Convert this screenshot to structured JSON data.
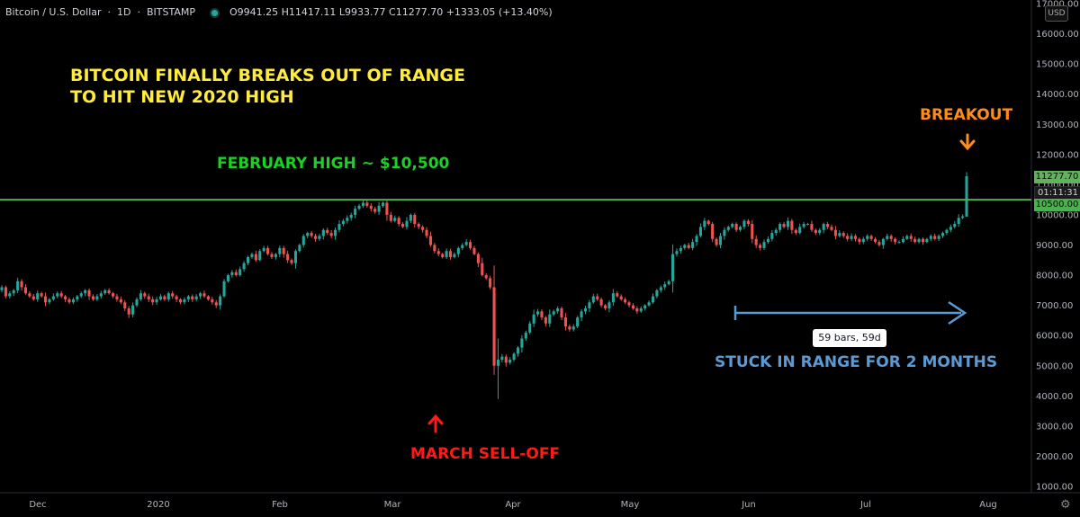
{
  "header": {
    "symbol": "Bitcoin / U.S. Dollar",
    "interval": "1D",
    "exchange": "BITSTAMP",
    "ohlc": "O9941.25  H11417.11  L9933.77  C11277.70  +1333.05 (+13.40%)",
    "currency": "USD"
  },
  "annotations": {
    "title_line1": "BITCOIN FINALLY BREAKS OUT OF RANGE",
    "title_line2": "TO HIT NEW 2020 HIGH",
    "february_high": "FEBRUARY HIGH ~ $10,500",
    "breakout": "BREAKOUT",
    "march": "MARCH SELL-OFF",
    "stuck": "STUCK IN RANGE FOR 2 MONTHS",
    "bars_measure": "59 bars, 59d"
  },
  "price_labels": {
    "last_price": "11277.70",
    "countdown": "01:11:31",
    "level": "10500.00"
  },
  "colors": {
    "up": "#26a69a",
    "down": "#ef5350",
    "level_line": "#4caf50",
    "title": "#ffeb3b",
    "feb": "#18d321",
    "breakout": "#ff8c1a",
    "march": "#ff1a1a",
    "range": "#5b9bd5"
  },
  "chart_data": {
    "type": "candlestick",
    "symbol": "BTCUSD",
    "interval": "1D",
    "ylim": [
      1000,
      17000
    ],
    "yticks": [
      17000,
      16000,
      15000,
      14000,
      13000,
      12000,
      11000,
      10000,
      9000,
      8000,
      7000,
      6000,
      5000,
      4000,
      3000,
      2000,
      1000
    ],
    "ytick_labels": [
      "17000.00",
      "16000.00",
      "15000.00",
      "14000.00",
      "13000.00",
      "12000.00",
      "11000.00",
      "10000.00",
      "9000.00",
      "8000.00",
      "7000.00",
      "6000.00",
      "5000.00",
      "4000.00",
      "3000.00",
      "2000.00",
      "1000.00"
    ],
    "xtick_labels": [
      "Dec",
      "2020",
      "Feb",
      "Mar",
      "Apr",
      "May",
      "Jun",
      "Jul",
      "Aug"
    ],
    "horizontal_level": 10500,
    "range_measure": {
      "bars": 59,
      "days": 59
    },
    "last_candle": {
      "open": 9941.25,
      "high": 11417.11,
      "low": 9933.77,
      "close": 11277.7,
      "change": 1333.05,
      "change_pct": 13.4
    },
    "approx_closes": [
      7600,
      7300,
      7400,
      7500,
      7800,
      7600,
      7400,
      7300,
      7200,
      7400,
      7300,
      7100,
      7200,
      7300,
      7400,
      7300,
      7200,
      7100,
      7200,
      7300,
      7400,
      7500,
      7300,
      7200,
      7300,
      7400,
      7500,
      7400,
      7300,
      7200,
      7100,
      6900,
      6700,
      7000,
      7200,
      7400,
      7300,
      7200,
      7100,
      7200,
      7300,
      7200,
      7400,
      7300,
      7200,
      7100,
      7200,
      7300,
      7200,
      7300,
      7400,
      7300,
      7200,
      7100,
      7000,
      7300,
      7800,
      8000,
      8100,
      8000,
      8200,
      8400,
      8600,
      8700,
      8500,
      8800,
      8900,
      8700,
      8600,
      8700,
      8900,
      8700,
      8500,
      8400,
      8800,
      9000,
      9300,
      9400,
      9300,
      9200,
      9300,
      9500,
      9400,
      9300,
      9500,
      9700,
      9800,
      9900,
      10000,
      10200,
      10300,
      10400,
      10300,
      10200,
      10100,
      10300,
      10400,
      10000,
      9800,
      9900,
      9700,
      9600,
      9800,
      10000,
      9700,
      9600,
      9500,
      9300,
      9000,
      8800,
      8700,
      8600,
      8800,
      8600,
      8700,
      8900,
      9000,
      9100,
      8900,
      8700,
      8400,
      8000,
      7900,
      7600,
      5000,
      5200,
      5300,
      5100,
      5200,
      5400,
      5600,
      5900,
      6100,
      6400,
      6700,
      6800,
      6600,
      6400,
      6700,
      6800,
      6900,
      6600,
      6300,
      6200,
      6300,
      6600,
      6800,
      6900,
      7100,
      7300,
      7200,
      7000,
      6900,
      7100,
      7400,
      7300,
      7200,
      7100,
      7000,
      6900,
      6800,
      6900,
      7000,
      7100,
      7300,
      7500,
      7600,
      7700,
      7800,
      8700,
      8800,
      8900,
      9000,
      8900,
      9100,
      9300,
      9600,
      9800,
      9700,
      9200,
      9000,
      9300,
      9500,
      9600,
      9700,
      9500,
      9600,
      9800,
      9700,
      9200,
      9000,
      8900,
      9100,
      9200,
      9400,
      9500,
      9700,
      9600,
      9800,
      9500,
      9400,
      9600,
      9700,
      9700,
      9500,
      9400,
      9500,
      9700,
      9600,
      9500,
      9300,
      9400,
      9300,
      9200,
      9300,
      9200,
      9100,
      9200,
      9300,
      9200,
      9100,
      9000,
      9200,
      9300,
      9200,
      9100,
      9100,
      9200,
      9300,
      9200,
      9100,
      9200,
      9100,
      9200,
      9300,
      9200,
      9300,
      9400,
      9500,
      9600,
      9700,
      9900,
      9950,
      11277.7
    ]
  }
}
